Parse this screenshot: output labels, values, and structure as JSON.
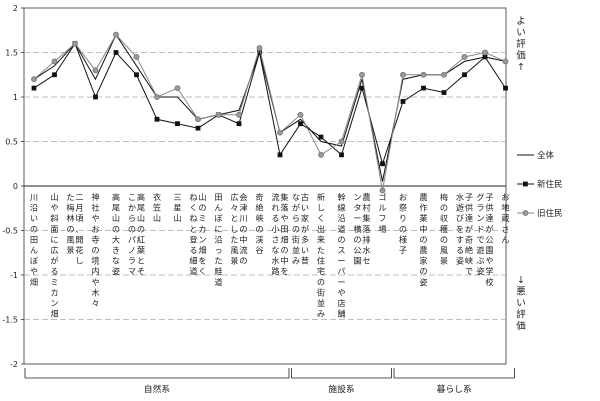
{
  "chart_data": {
    "type": "line",
    "ylim": [
      -2,
      2
    ],
    "yticks": [
      2,
      1.5,
      1,
      0.5,
      0,
      -0.5,
      -1,
      -1.5,
      -2
    ],
    "grid": "dashed horizontal lines at ±0.5, ±1, ±1.5",
    "legend_position": "right",
    "categories": [
      "川沿いの田んぼや畑",
      "山や斜面に広がるミカン畑",
      "二月頃、開花した梅林の風景",
      "神社やお寺の境内や木々",
      "高尾山の大きな姿",
      "高尾山の紅葉とそこからのパノラマ",
      "衣笠山",
      "三星山",
      "山のミカン畑をくねくねと登る細道",
      "田んぼに沿った畦道",
      "会津川の中流の広々とした風景",
      "奇絶峡の渓谷",
      "集落や田畑の中を流れる小さな水路",
      "古い家が多い昔ながらの街並み",
      "新しく出来た住宅の街並み",
      "幹線沿道のスーパーや店舗",
      "農村集落排水センター横の公園",
      "ゴルフ場",
      "お祭りの様子",
      "農作業中の農家の姿",
      "梅の収穫の風景",
      "子供達が奇絶峡で水遊びをする姿",
      "子供達が公園や学校グランドで遊ぶ姿",
      "お地蔵さん"
    ],
    "series": [
      {
        "name": "全体",
        "marker": "none",
        "color": "#111111",
        "values": [
          1.2,
          1.35,
          1.6,
          1.2,
          1.7,
          1.35,
          1.0,
          1.0,
          0.75,
          0.8,
          0.85,
          1.5,
          0.6,
          0.75,
          0.5,
          0.45,
          1.2,
          0.05,
          1.2,
          1.25,
          1.25,
          1.4,
          1.45,
          1.4
        ]
      },
      {
        "name": "新住民",
        "marker": "square",
        "color": "#111111",
        "values": [
          1.1,
          1.25,
          1.6,
          1.0,
          1.5,
          1.25,
          0.75,
          0.7,
          0.65,
          0.8,
          0.7,
          1.5,
          0.35,
          0.7,
          0.55,
          0.35,
          1.1,
          0.25,
          0.95,
          1.1,
          1.05,
          1.25,
          1.45,
          1.1
        ]
      },
      {
        "name": "旧住民",
        "marker": "circle",
        "color": "#888888",
        "values": [
          1.2,
          1.4,
          1.6,
          1.3,
          1.7,
          1.45,
          1.0,
          1.1,
          0.75,
          0.8,
          0.8,
          1.55,
          0.6,
          0.8,
          0.35,
          0.5,
          1.25,
          -0.05,
          1.25,
          1.25,
          1.25,
          1.45,
          1.5,
          1.4
        ]
      }
    ],
    "groups": [
      {
        "label": "自然系",
        "from": 0,
        "to": 12
      },
      {
        "label": "施設系",
        "from": 13,
        "to": 17
      },
      {
        "label": "暮らし系",
        "from": 18,
        "to": 23
      }
    ],
    "annotations": {
      "good": "よい評価↑",
      "bad": "↓悪い評価"
    }
  }
}
